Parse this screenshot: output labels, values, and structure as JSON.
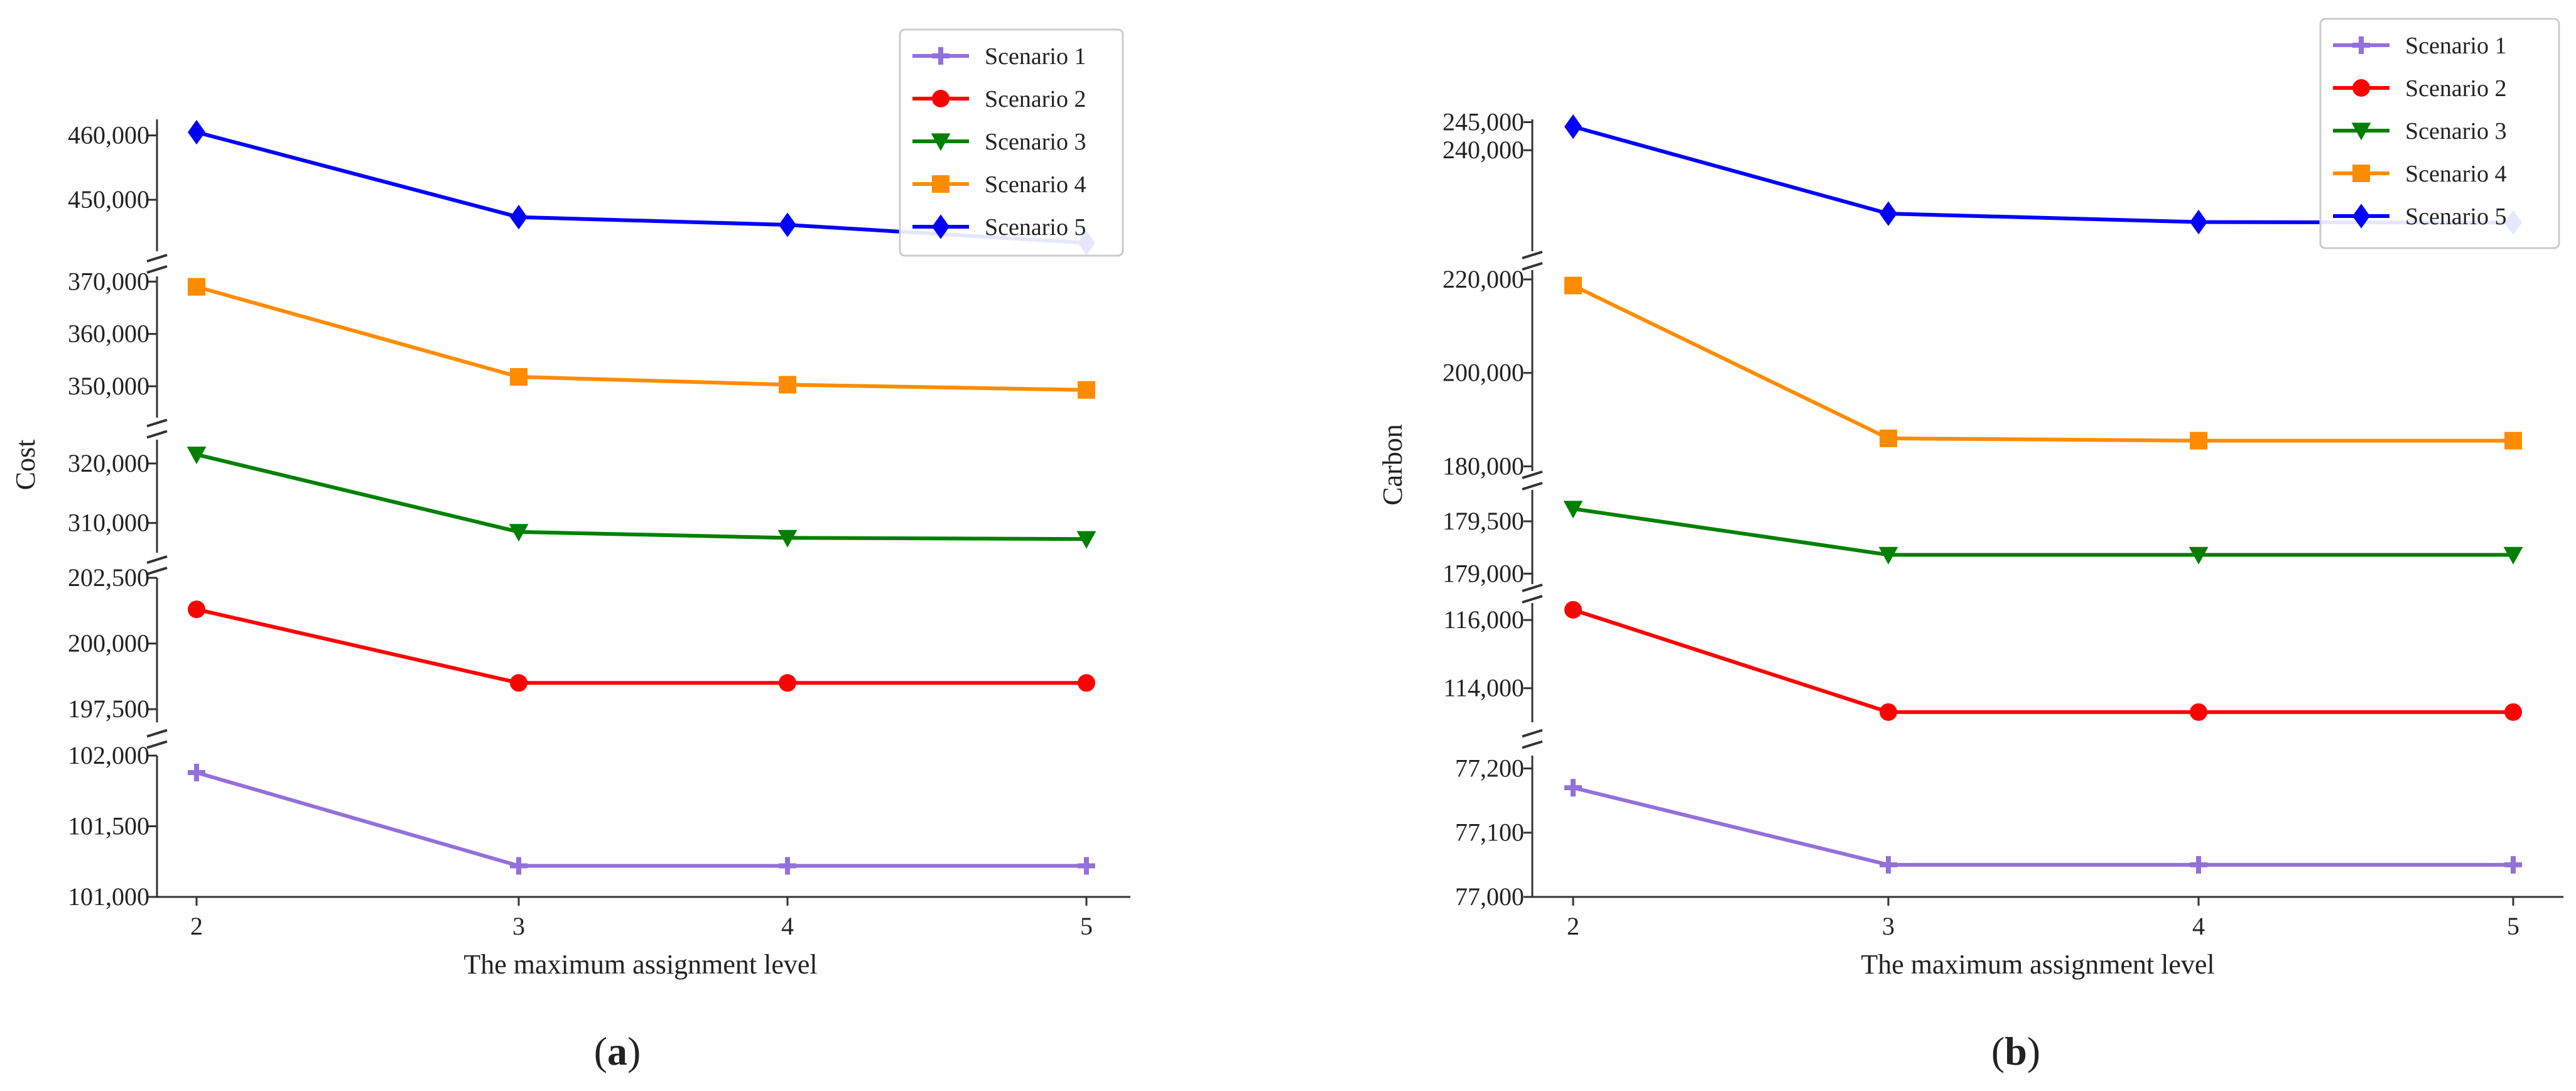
{
  "colors": {
    "scenario1": "#9370DB",
    "scenario2": "#FF0000",
    "scenario3": "#008000",
    "scenario4": "#FF8C00",
    "scenario5": "#0000FF"
  },
  "chart_data": [
    {
      "id": "a",
      "type": "line",
      "panel_label_open": "(",
      "panel_label_letter": "a",
      "panel_label_close": ")",
      "xlabel": "The maximum assignment level",
      "ylabel": "Cost",
      "x": [
        2,
        3,
        4,
        5
      ],
      "x_ticks": [
        "2",
        "3",
        "4",
        "5"
      ],
      "broken_y_axis": true,
      "segments": [
        {
          "range": [
            101000,
            102000
          ],
          "ticks": [
            101000,
            101500,
            102000
          ],
          "tick_labels": [
            "101,000",
            "101,500",
            "102,000"
          ]
        },
        {
          "range": [
            197000,
            202500
          ],
          "ticks": [
            197500,
            200000,
            202500
          ],
          "tick_labels": [
            "197,500",
            "200,000",
            "202,500"
          ]
        },
        {
          "range": [
            305000,
            324000
          ],
          "ticks": [
            310000,
            320000
          ],
          "tick_labels": [
            "310,000",
            "320,000"
          ]
        },
        {
          "range": [
            344000,
            371000
          ],
          "ticks": [
            350000,
            360000,
            370000
          ],
          "tick_labels": [
            "350,000",
            "360,000",
            "370,000"
          ]
        },
        {
          "range": [
            442000,
            462500
          ],
          "ticks": [
            450000,
            460000
          ],
          "tick_labels": [
            "450,000",
            "460,000"
          ]
        }
      ],
      "series": [
        {
          "name": "Scenario 1",
          "color_key": "scenario1",
          "marker": "plus",
          "segment": 0,
          "values": [
            101880,
            101220,
            101220,
            101220
          ]
        },
        {
          "name": "Scenario 2",
          "color_key": "scenario2",
          "marker": "circle",
          "segment": 1,
          "values": [
            201300,
            198500,
            198500,
            198500
          ]
        },
        {
          "name": "Scenario 3",
          "color_key": "scenario3",
          "marker": "triangle-down",
          "segment": 2,
          "values": [
            321500,
            308500,
            307500,
            307300
          ]
        },
        {
          "name": "Scenario 4",
          "color_key": "scenario4",
          "marker": "square",
          "segment": 3,
          "values": [
            369000,
            351800,
            350300,
            349300
          ]
        },
        {
          "name": "Scenario 5",
          "color_key": "scenario5",
          "marker": "diamond",
          "segment": 4,
          "values": [
            460500,
            447300,
            446100,
            443300
          ]
        }
      ],
      "legend": {
        "location": "top-right",
        "entries": [
          "Scenario 1",
          "Scenario 2",
          "Scenario 3",
          "Scenario 4",
          "Scenario 5"
        ]
      }
    },
    {
      "id": "b",
      "type": "line",
      "panel_label_open": "(",
      "panel_label_letter": "b",
      "panel_label_close": ")",
      "xlabel": "The maximum assignment level",
      "ylabel": "Carbon",
      "x": [
        2,
        3,
        4,
        5
      ],
      "x_ticks": [
        "2",
        "3",
        "4",
        "5"
      ],
      "broken_y_axis": true,
      "segments": [
        {
          "range": [
            77000,
            77220
          ],
          "ticks": [
            77000,
            77100,
            77200
          ],
          "tick_labels": [
            "77,000",
            "77,100",
            "77,200"
          ]
        },
        {
          "range": [
            113000,
            116500
          ],
          "ticks": [
            114000,
            116000
          ],
          "tick_labels": [
            "114,000",
            "116,000"
          ]
        },
        {
          "range": [
            178900,
            179800
          ],
          "ticks": [
            179000,
            179500
          ],
          "tick_labels": [
            "179,000",
            "179,500"
          ]
        },
        {
          "range": [
            179000,
            222000
          ],
          "ticks": [
            180000,
            200000,
            220000
          ],
          "tick_labels": [
            "180,000",
            "200,000",
            "220,000"
          ]
        },
        {
          "range": [
            222000,
            245500
          ],
          "ticks": [
            240000,
            245000
          ],
          "tick_labels": [
            "240,000",
            "245,000"
          ]
        }
      ],
      "series": [
        {
          "name": "Scenario 1",
          "color_key": "scenario1",
          "marker": "plus",
          "segment": 0,
          "values": [
            77170,
            77050,
            77050,
            77050
          ]
        },
        {
          "name": "Scenario 2",
          "color_key": "scenario2",
          "marker": "circle",
          "segment": 1,
          "values": [
            116300,
            113300,
            113300,
            113300
          ]
        },
        {
          "name": "Scenario 3",
          "color_key": "scenario3",
          "marker": "triangle-down",
          "segment": 2,
          "values": [
            179620,
            179180,
            179180,
            179180
          ]
        },
        {
          "name": "Scenario 4",
          "color_key": "scenario4",
          "marker": "square",
          "segment": 3,
          "values": [
            218700,
            186000,
            185500,
            185500
          ]
        },
        {
          "name": "Scenario 5",
          "color_key": "scenario5",
          "marker": "diamond",
          "segment": 4,
          "values": [
            244200,
            228700,
            227200,
            227100
          ]
        }
      ],
      "legend": {
        "location": "top-right",
        "entries": [
          "Scenario 1",
          "Scenario 2",
          "Scenario 3",
          "Scenario 4",
          "Scenario 5"
        ]
      }
    }
  ]
}
